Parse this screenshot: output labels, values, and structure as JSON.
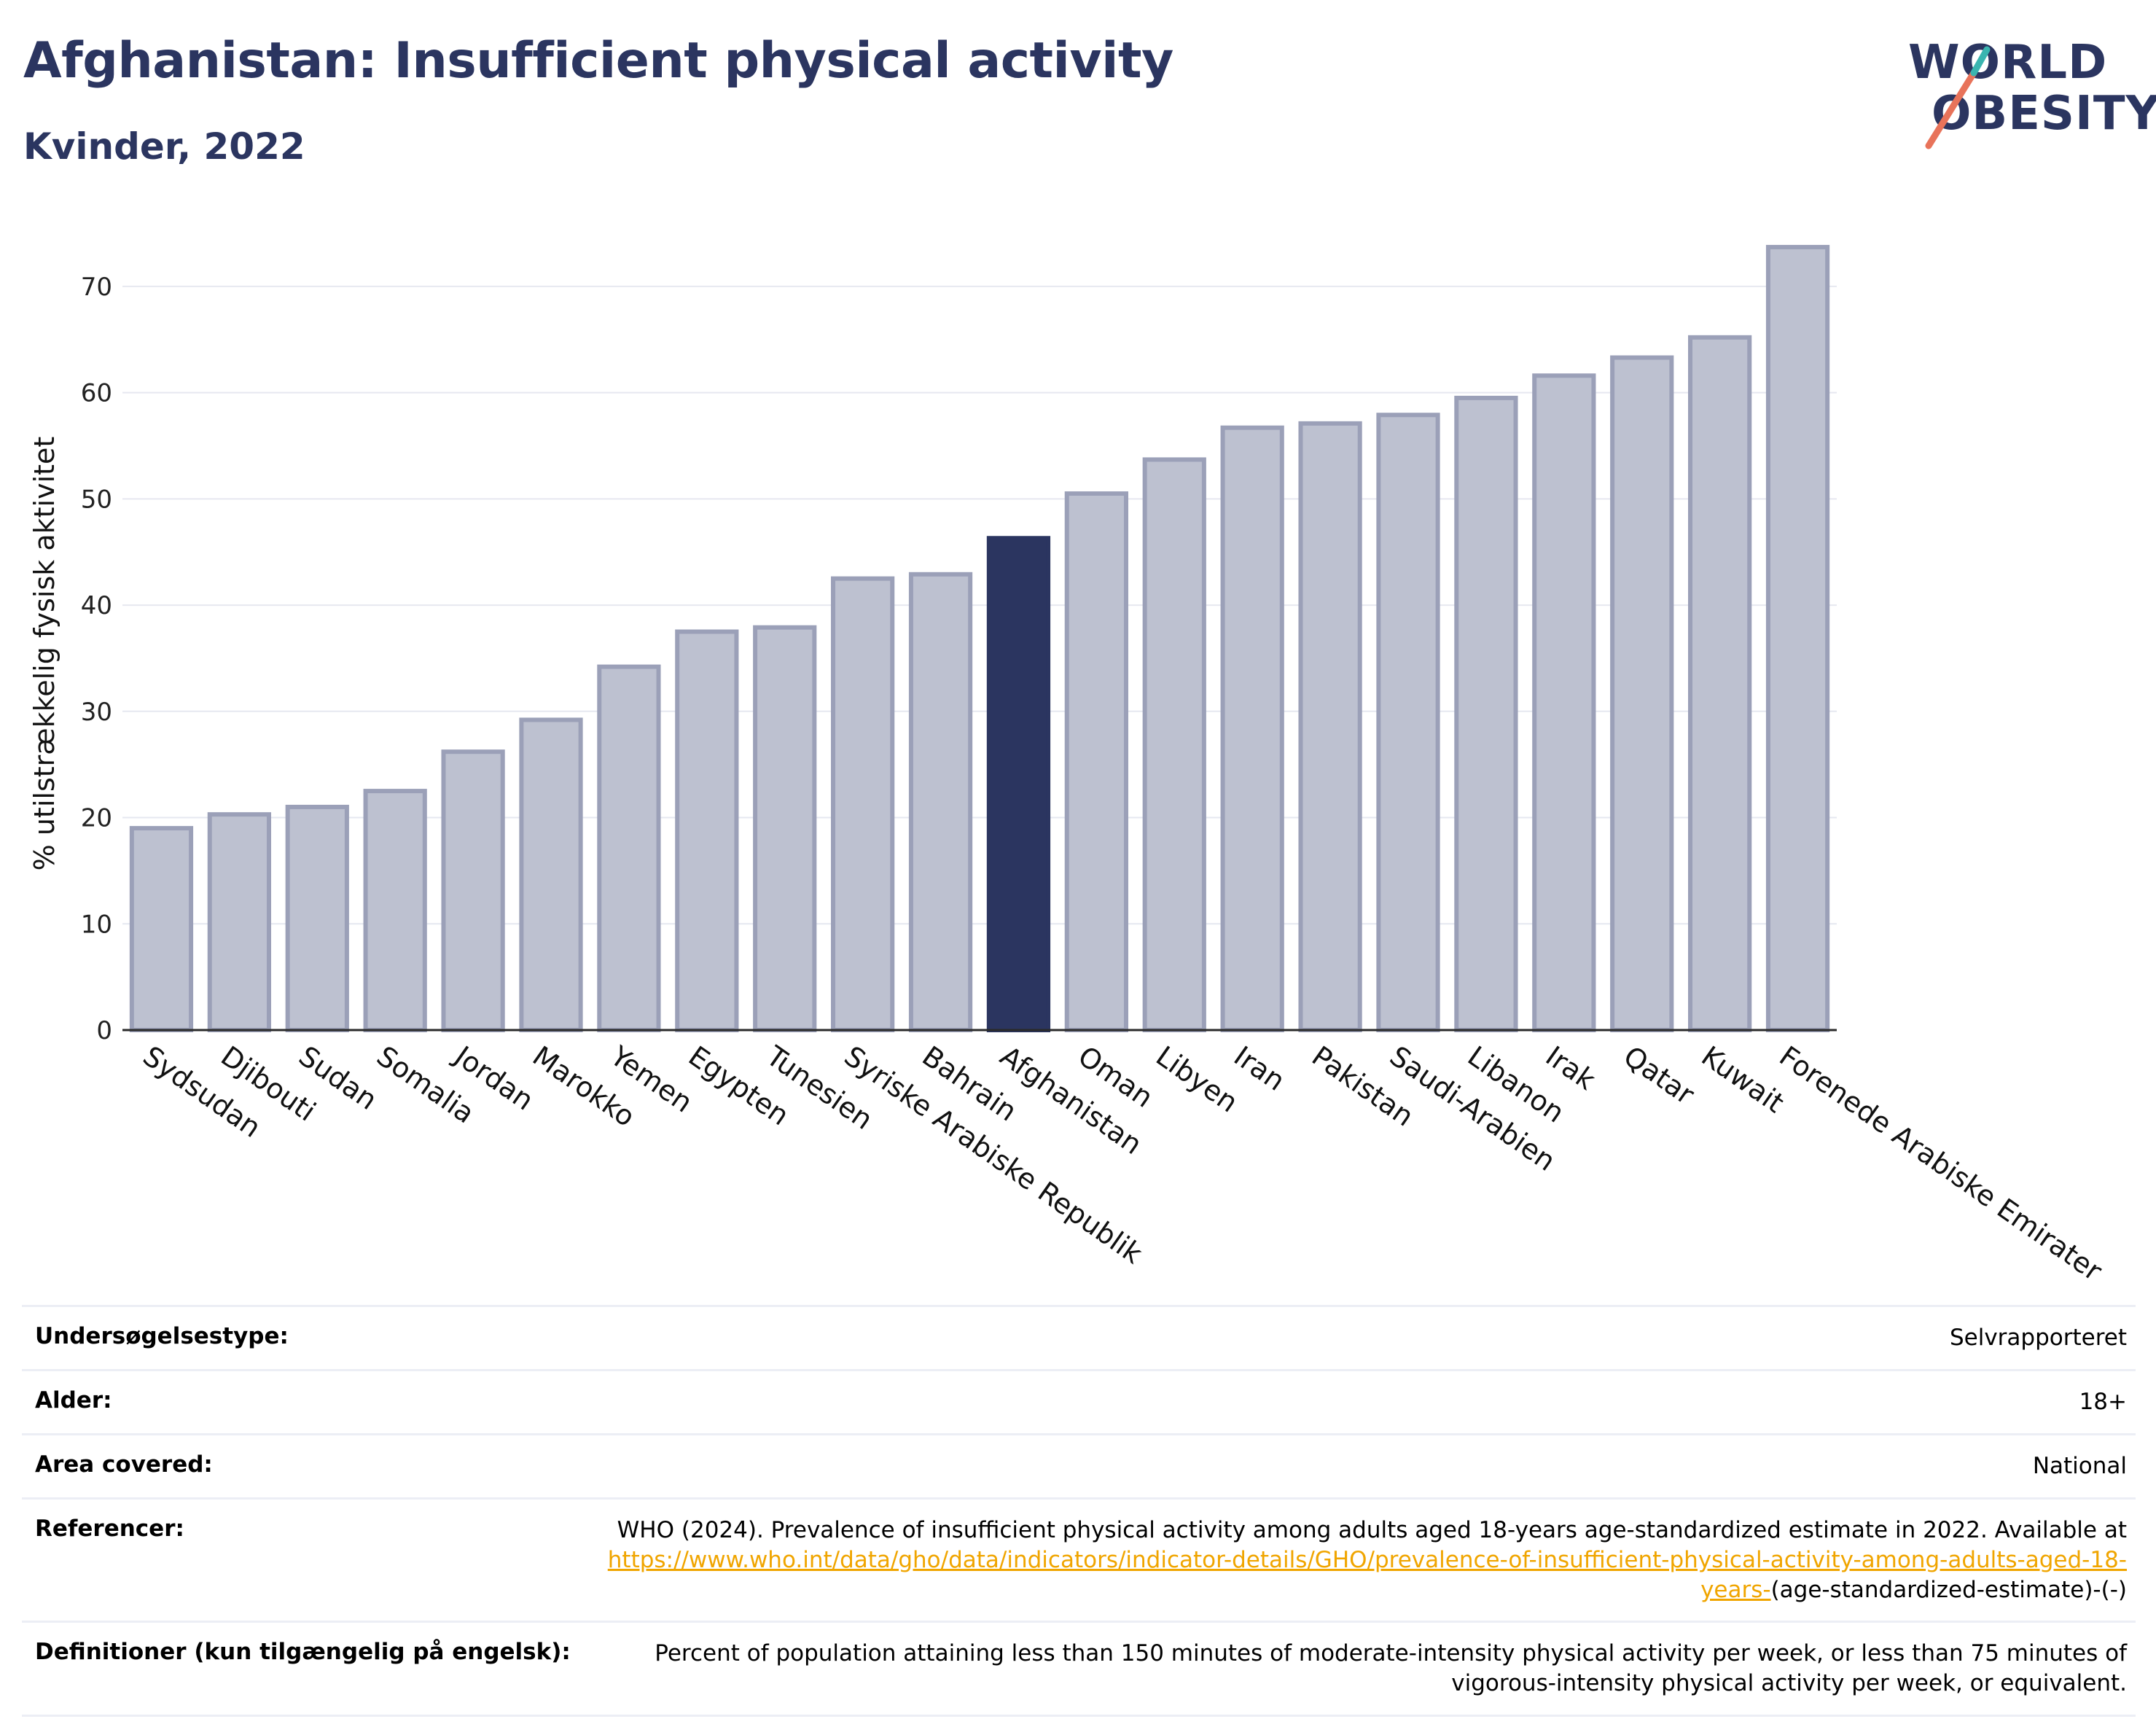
{
  "header": {
    "title": "Afghanistan: Insufficient physical activity",
    "subtitle": "Kvinder, 2022"
  },
  "logo": {
    "line1": "WORLD",
    "line2": "OBESITY",
    "slash_colors": [
      "#e8735a",
      "#3ab5b0"
    ]
  },
  "colors": {
    "bar": "#bdc1d0",
    "bar_border": "#9ba0b8",
    "highlight": "#2b3560",
    "grid": "#e6e8f0",
    "axis": "#2a2a2a"
  },
  "chart_data": {
    "type": "bar",
    "ylabel": "% utilstrækkelig fysisk aktivitet",
    "ylim": [
      0,
      75
    ],
    "yticks": [
      0,
      10,
      20,
      30,
      40,
      50,
      60,
      70
    ],
    "grid": true,
    "highlight": "Afghanistan",
    "categories": [
      "Sydsudan",
      "Djibouti",
      "Sudan",
      "Somalia",
      "Jordan",
      "Marokko",
      "Yemen",
      "Egypten",
      "Tunesien",
      "Syriske Arabiske Republik",
      "Bahrain",
      "Afghanistan",
      "Oman",
      "Libyen",
      "Iran",
      "Pakistan",
      "Saudi-Arabien",
      "Libanon",
      "Irak",
      "Qatar",
      "Kuwait",
      "Forenede Arabiske Emirater"
    ],
    "values": [
      19.0,
      20.3,
      21.0,
      22.5,
      26.2,
      29.2,
      34.2,
      37.5,
      37.9,
      42.5,
      42.9,
      46.3,
      50.5,
      53.7,
      56.7,
      57.1,
      57.9,
      59.5,
      61.6,
      63.3,
      65.2,
      73.7
    ]
  },
  "info": {
    "survey_type": {
      "label": "Undersøgelsestype:",
      "value": "Selvrapporteret"
    },
    "age": {
      "label": "Alder:",
      "value": "18+"
    },
    "area": {
      "label": "Area covered:",
      "value": "National"
    },
    "references": {
      "label": "Referencer:",
      "text": "WHO (2024). Prevalence of insufficient physical activity among adults aged 18-years age-standardized estimate in 2022. Available at",
      "link": "https://www.who.int/data/gho/data/indicators/indicator-details/GHO/prevalence-of-insufficient-physical-activity-among-adults-aged-18-years-",
      "suffix": "(age-standardized-estimate)-(-)"
    },
    "definitions": {
      "label": "Definitioner (kun tilgængelig på engelsk):",
      "value": "Percent of population attaining less than 150 minutes of moderate-intensity physical activity per week, or less than 75 minutes of vigorous-intensity physical activity per week, or equivalent."
    }
  }
}
